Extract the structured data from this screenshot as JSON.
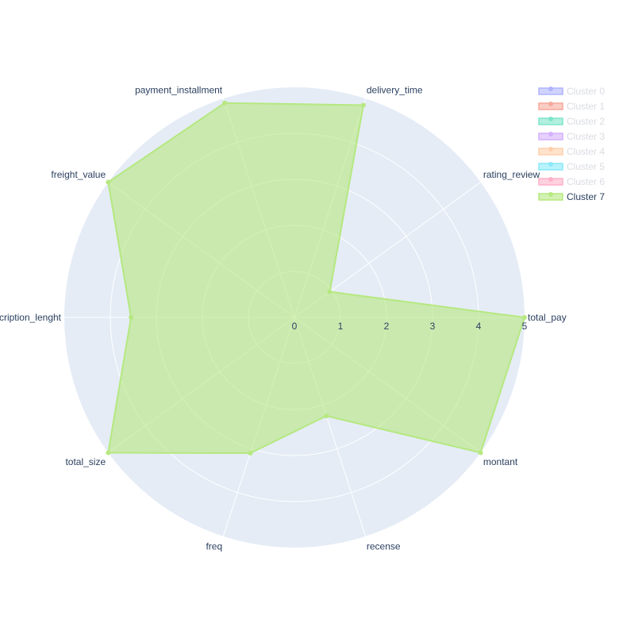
{
  "chart_data": {
    "type": "radar",
    "axes": [
      "total_pay",
      "rating_review",
      "delivery_time",
      "payment_installment",
      "freight_value",
      "description_lenght",
      "total_size",
      "freq",
      "recense",
      "montant"
    ],
    "radial_range": [
      0,
      5
    ],
    "radial_ticks": [
      "0",
      "1",
      "2",
      "3",
      "4",
      "5"
    ],
    "grid": true,
    "legend_position": "top-right",
    "series": [
      {
        "name": "Cluster 0",
        "color": "#636efa",
        "visible": false,
        "values": []
      },
      {
        "name": "Cluster 1",
        "color": "#ef553b",
        "visible": false,
        "values": []
      },
      {
        "name": "Cluster 2",
        "color": "#00cc96",
        "visible": false,
        "values": []
      },
      {
        "name": "Cluster 3",
        "color": "#ab63fa",
        "visible": false,
        "values": []
      },
      {
        "name": "Cluster 4",
        "color": "#ffa15a",
        "visible": false,
        "values": []
      },
      {
        "name": "Cluster 5",
        "color": "#19d3f3",
        "visible": false,
        "values": []
      },
      {
        "name": "Cluster 6",
        "color": "#ff6692",
        "visible": false,
        "values": []
      },
      {
        "name": "Cluster 7",
        "color": "#b6e880",
        "visible": true,
        "values": [
          5.0,
          0.95,
          4.85,
          4.9,
          5.0,
          3.55,
          5.0,
          3.1,
          2.25,
          5.0
        ]
      }
    ]
  },
  "colors": {
    "polar_background": "#e5ecf6",
    "gridline": "#ffffff",
    "text": "#2a3f5f",
    "legend_hidden_text": "#b4b9c4"
  }
}
